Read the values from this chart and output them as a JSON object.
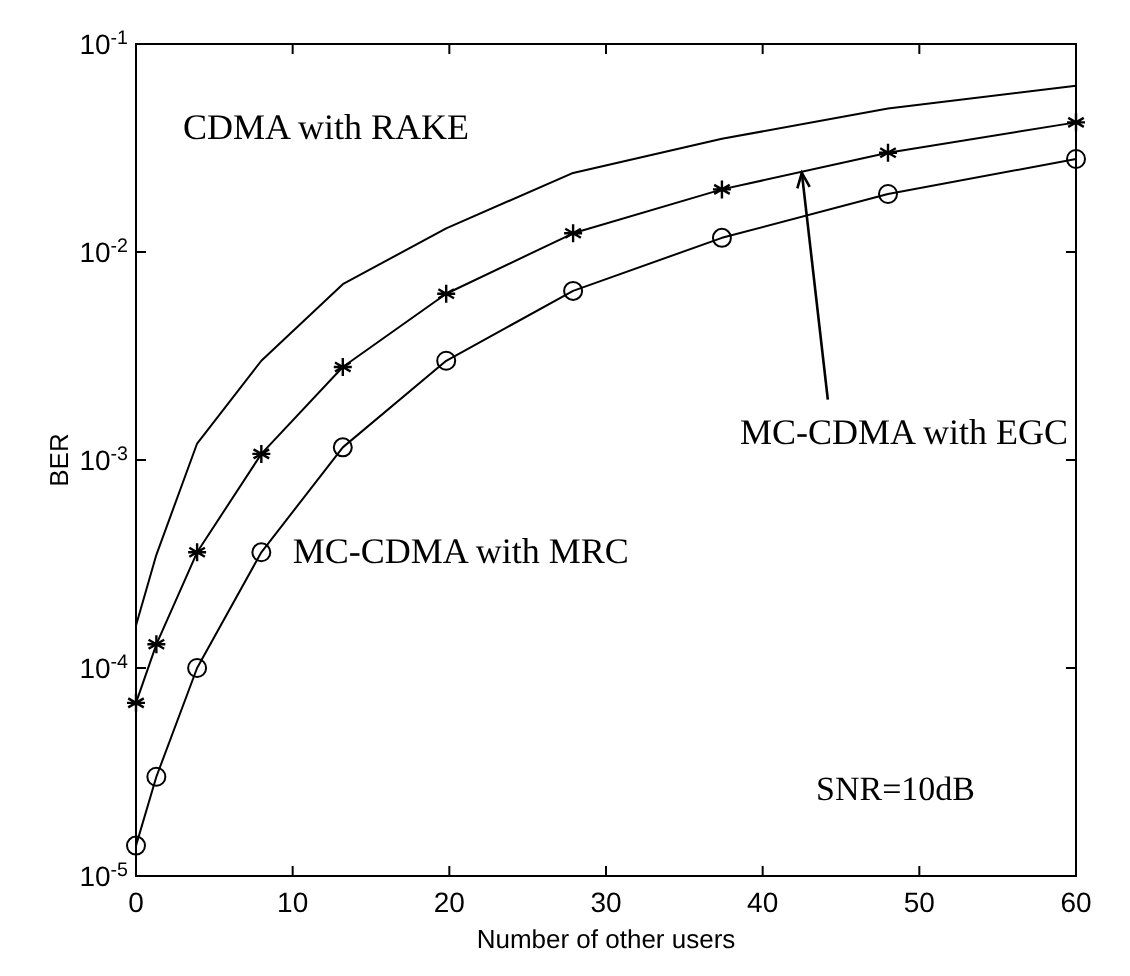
{
  "chart_data": {
    "type": "line",
    "xlabel": "Number of other users",
    "ylabel": "BER",
    "log": "y",
    "x": [
      0,
      1.3,
      3.9,
      8,
      13.2,
      19.8,
      27.9,
      37.4,
      48,
      60
    ],
    "series": [
      {
        "name": "CDMA with RAKE",
        "color": "#000000",
        "marker": "none",
        "values": [
          0.00016,
          0.00035,
          0.0012,
          0.003,
          0.007,
          0.013,
          0.024,
          0.035,
          0.049,
          0.063
        ]
      },
      {
        "color": "#000000",
        "marker": "cross",
        "values": [
          6.8e-05,
          0.00013,
          0.00036,
          0.00107,
          0.0028,
          0.0063,
          0.0123,
          0.02,
          0.03,
          0.042
        ]
      },
      {
        "name": "MC-CDMA with MRC",
        "color": "#000000",
        "marker": "circle",
        "values": [
          1.4e-05,
          3e-05,
          0.0001,
          0.00036,
          0.00115,
          0.003,
          0.0065,
          0.0117,
          0.019,
          0.028
        ]
      }
    ],
    "xlim": [
      0,
      60
    ],
    "xticks": [
      0,
      10,
      20,
      30,
      40,
      50,
      60
    ],
    "ylim": [
      1e-05,
      0.1
    ],
    "yticks": [
      {
        "value": 1e-05,
        "label": "10$^{-5}$"
      },
      {
        "value": 0.0001,
        "label": "10$^{-4}$"
      },
      {
        "value": 0.001,
        "label": "10$^{-3}$"
      },
      {
        "value": 0.01,
        "label": "10$^{-2}$"
      },
      {
        "value": 0.1,
        "label": "10$^{-1}$"
      }
    ],
    "grid": false,
    "line_style": "solid",
    "annotations": [
      {
        "text": "MC-CDMA with EGC",
        "x": 42.5,
        "y": 0.024
      },
      "SNR=10dB"
    ]
  }
}
